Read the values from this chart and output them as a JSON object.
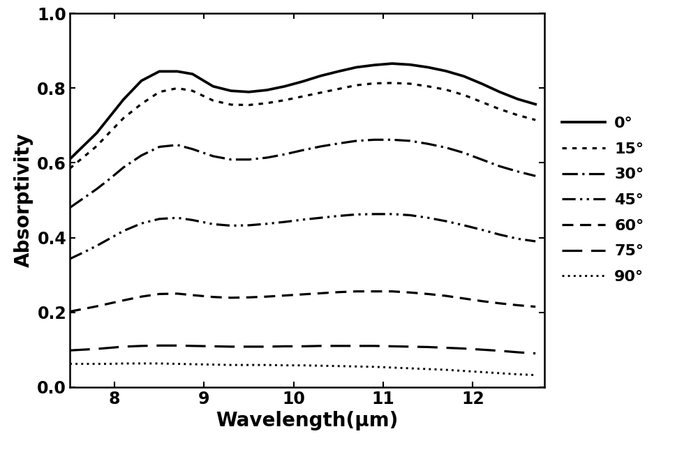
{
  "title": "",
  "xlabel": "Wavelength(μm)",
  "ylabel": "Absorptivity",
  "xlim": [
    7.5,
    12.8
  ],
  "ylim": [
    0.0,
    1.0
  ],
  "xticks": [
    8,
    9,
    10,
    11,
    12
  ],
  "yticks": [
    0.0,
    0.2,
    0.4,
    0.6,
    0.8,
    1.0
  ],
  "xlabel_fontsize": 20,
  "ylabel_fontsize": 20,
  "tick_fontsize": 17,
  "legend_fontsize": 16,
  "linewidth": 2.3,
  "series": [
    {
      "label": "0°",
      "x": [
        7.5,
        7.65,
        7.8,
        7.95,
        8.1,
        8.3,
        8.5,
        8.7,
        8.87,
        9.1,
        9.3,
        9.5,
        9.7,
        9.9,
        10.1,
        10.3,
        10.5,
        10.7,
        10.9,
        11.1,
        11.3,
        11.5,
        11.7,
        11.9,
        12.1,
        12.3,
        12.5,
        12.7
      ],
      "y": [
        0.61,
        0.645,
        0.68,
        0.725,
        0.77,
        0.82,
        0.845,
        0.845,
        0.838,
        0.805,
        0.793,
        0.79,
        0.795,
        0.805,
        0.818,
        0.833,
        0.845,
        0.856,
        0.862,
        0.866,
        0.863,
        0.856,
        0.846,
        0.832,
        0.812,
        0.79,
        0.771,
        0.757
      ]
    },
    {
      "label": "15°",
      "x": [
        7.5,
        7.65,
        7.8,
        7.95,
        8.1,
        8.3,
        8.5,
        8.7,
        8.87,
        9.1,
        9.3,
        9.5,
        9.7,
        9.9,
        10.1,
        10.3,
        10.5,
        10.7,
        10.9,
        11.1,
        11.3,
        11.5,
        11.7,
        11.9,
        12.1,
        12.3,
        12.5,
        12.7
      ],
      "y": [
        0.585,
        0.615,
        0.645,
        0.683,
        0.72,
        0.758,
        0.79,
        0.8,
        0.793,
        0.767,
        0.756,
        0.755,
        0.76,
        0.768,
        0.778,
        0.788,
        0.798,
        0.808,
        0.813,
        0.814,
        0.812,
        0.805,
        0.796,
        0.782,
        0.763,
        0.744,
        0.728,
        0.715
      ]
    },
    {
      "label": "30°",
      "x": [
        7.5,
        7.65,
        7.8,
        7.95,
        8.1,
        8.3,
        8.5,
        8.7,
        8.87,
        9.1,
        9.3,
        9.5,
        9.7,
        9.9,
        10.1,
        10.3,
        10.5,
        10.7,
        10.9,
        11.1,
        11.3,
        11.5,
        11.7,
        11.9,
        12.1,
        12.3,
        12.5,
        12.7
      ],
      "y": [
        0.48,
        0.505,
        0.53,
        0.558,
        0.588,
        0.62,
        0.643,
        0.648,
        0.637,
        0.618,
        0.609,
        0.609,
        0.614,
        0.623,
        0.634,
        0.644,
        0.652,
        0.659,
        0.662,
        0.662,
        0.659,
        0.651,
        0.641,
        0.627,
        0.609,
        0.591,
        0.577,
        0.565
      ]
    },
    {
      "label": "45°",
      "x": [
        7.5,
        7.65,
        7.8,
        7.95,
        8.1,
        8.3,
        8.5,
        8.7,
        8.87,
        9.1,
        9.3,
        9.5,
        9.7,
        9.9,
        10.1,
        10.3,
        10.5,
        10.7,
        10.9,
        11.1,
        11.3,
        11.5,
        11.7,
        11.9,
        12.1,
        12.3,
        12.5,
        12.7
      ],
      "y": [
        0.343,
        0.36,
        0.378,
        0.398,
        0.418,
        0.438,
        0.45,
        0.453,
        0.447,
        0.436,
        0.432,
        0.433,
        0.437,
        0.442,
        0.448,
        0.453,
        0.458,
        0.462,
        0.463,
        0.463,
        0.46,
        0.453,
        0.444,
        0.433,
        0.421,
        0.408,
        0.397,
        0.39
      ]
    },
    {
      "label": "60°",
      "x": [
        7.5,
        7.65,
        7.8,
        7.95,
        8.1,
        8.3,
        8.5,
        8.7,
        8.87,
        9.1,
        9.3,
        9.5,
        9.7,
        9.9,
        10.1,
        10.3,
        10.5,
        10.7,
        10.9,
        11.1,
        11.3,
        11.5,
        11.7,
        11.9,
        12.1,
        12.3,
        12.5,
        12.7
      ],
      "y": [
        0.202,
        0.209,
        0.216,
        0.224,
        0.232,
        0.242,
        0.249,
        0.25,
        0.246,
        0.241,
        0.239,
        0.24,
        0.242,
        0.245,
        0.248,
        0.251,
        0.254,
        0.256,
        0.256,
        0.256,
        0.253,
        0.249,
        0.244,
        0.237,
        0.23,
        0.224,
        0.219,
        0.215
      ]
    },
    {
      "label": "75°",
      "x": [
        7.5,
        7.65,
        7.8,
        7.95,
        8.1,
        8.3,
        8.5,
        8.7,
        8.87,
        9.1,
        9.3,
        9.5,
        9.7,
        9.9,
        10.1,
        10.3,
        10.5,
        10.7,
        10.9,
        11.1,
        11.3,
        11.5,
        11.7,
        11.9,
        12.1,
        12.3,
        12.5,
        12.7
      ],
      "y": [
        0.098,
        0.1,
        0.102,
        0.105,
        0.108,
        0.11,
        0.111,
        0.111,
        0.11,
        0.109,
        0.108,
        0.108,
        0.108,
        0.109,
        0.109,
        0.11,
        0.11,
        0.11,
        0.11,
        0.109,
        0.108,
        0.107,
        0.105,
        0.103,
        0.1,
        0.097,
        0.093,
        0.09
      ]
    },
    {
      "label": "90°",
      "x": [
        7.5,
        7.65,
        7.8,
        7.95,
        8.1,
        8.3,
        8.5,
        8.7,
        8.87,
        9.1,
        9.3,
        9.5,
        9.7,
        9.9,
        10.1,
        10.3,
        10.5,
        10.7,
        10.9,
        11.1,
        11.3,
        11.5,
        11.7,
        11.9,
        12.1,
        12.3,
        12.5,
        12.7
      ],
      "y": [
        0.062,
        0.062,
        0.062,
        0.062,
        0.063,
        0.063,
        0.063,
        0.062,
        0.061,
        0.06,
        0.059,
        0.059,
        0.059,
        0.058,
        0.058,
        0.057,
        0.056,
        0.055,
        0.054,
        0.052,
        0.05,
        0.048,
        0.046,
        0.043,
        0.04,
        0.037,
        0.034,
        0.032
      ]
    }
  ]
}
